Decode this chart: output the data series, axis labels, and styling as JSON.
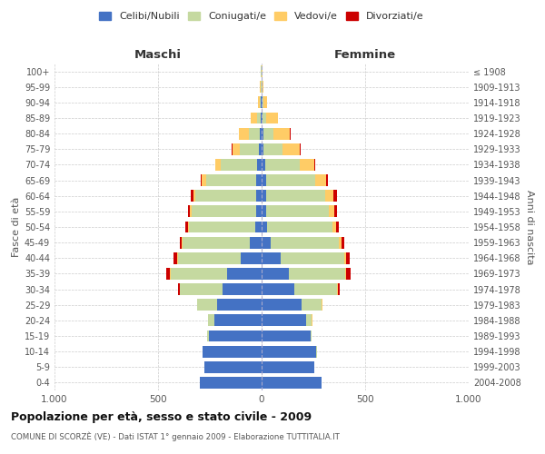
{
  "age_groups": [
    "0-4",
    "5-9",
    "10-14",
    "15-19",
    "20-24",
    "25-29",
    "30-34",
    "35-39",
    "40-44",
    "45-49",
    "50-54",
    "55-59",
    "60-64",
    "65-69",
    "70-74",
    "75-79",
    "80-84",
    "85-89",
    "90-94",
    "95-99",
    "100+"
  ],
  "birth_years": [
    "2004-2008",
    "1999-2003",
    "1994-1998",
    "1989-1993",
    "1984-1988",
    "1979-1983",
    "1974-1978",
    "1969-1973",
    "1964-1968",
    "1959-1963",
    "1954-1958",
    "1949-1953",
    "1944-1948",
    "1939-1943",
    "1934-1938",
    "1929-1933",
    "1924-1928",
    "1919-1923",
    "1914-1918",
    "1909-1913",
    "≤ 1908"
  ],
  "male_celibe": [
    300,
    275,
    285,
    255,
    230,
    215,
    190,
    165,
    100,
    55,
    32,
    28,
    28,
    28,
    22,
    12,
    8,
    5,
    3,
    2,
    2
  ],
  "male_coniugato": [
    0,
    1,
    2,
    8,
    28,
    95,
    205,
    275,
    305,
    325,
    320,
    310,
    290,
    240,
    175,
    95,
    55,
    18,
    5,
    2,
    1
  ],
  "male_vedovo": [
    0,
    0,
    0,
    0,
    0,
    1,
    1,
    2,
    3,
    4,
    5,
    8,
    10,
    20,
    25,
    35,
    45,
    28,
    10,
    3,
    1
  ],
  "male_divorziato": [
    0,
    0,
    0,
    0,
    1,
    2,
    8,
    18,
    18,
    12,
    12,
    10,
    15,
    5,
    3,
    2,
    2,
    0,
    0,
    0,
    0
  ],
  "female_celibe": [
    290,
    255,
    265,
    235,
    215,
    195,
    160,
    130,
    90,
    45,
    25,
    20,
    22,
    22,
    18,
    10,
    8,
    6,
    4,
    2,
    2
  ],
  "female_coniugato": [
    0,
    1,
    2,
    7,
    28,
    95,
    205,
    275,
    308,
    328,
    315,
    305,
    285,
    235,
    165,
    90,
    50,
    18,
    4,
    1,
    0
  ],
  "female_vedovo": [
    0,
    0,
    0,
    0,
    1,
    2,
    3,
    5,
    8,
    12,
    18,
    25,
    40,
    55,
    70,
    85,
    80,
    55,
    20,
    5,
    2
  ],
  "female_divorziato": [
    0,
    0,
    0,
    0,
    1,
    3,
    10,
    20,
    20,
    15,
    14,
    12,
    15,
    6,
    4,
    3,
    2,
    1,
    0,
    0,
    0
  ],
  "color_celibe": "#4472C4",
  "color_coniugato": "#C5D9A0",
  "color_vedovo": "#FFCC66",
  "color_divorziato": "#CC0000",
  "title": "Popolazione per età, sesso e stato civile - 2009",
  "subtitle": "COMUNE DI SCORZÈ (VE) - Dati ISTAT 1° gennaio 2009 - Elaborazione TUTTITALIA.IT",
  "xlabel_left": "Maschi",
  "xlabel_right": "Femmine",
  "ylabel_left": "Fasce di età",
  "ylabel_right": "Anni di nascita",
  "xlim": 1000,
  "legend_labels": [
    "Celibi/Nubili",
    "Coniugati/e",
    "Vedovi/e",
    "Divorziati/e"
  ],
  "bg_color": "#FFFFFF",
  "grid_color": "#CCCCCC",
  "bar_height": 0.75
}
